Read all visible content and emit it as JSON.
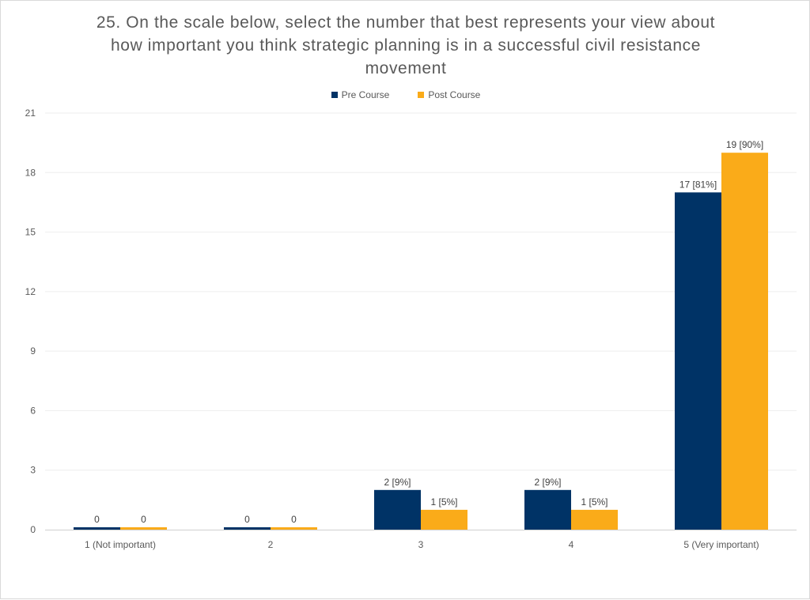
{
  "chart_data": {
    "type": "bar",
    "title": "25. On the scale below, select the number that best represents your view about how important you think strategic planning is in a successful civil resistance movement",
    "xlabel": "",
    "ylabel": "",
    "categories": [
      "1 (Not important)",
      "2",
      "3",
      "4",
      "5 (Very important)"
    ],
    "series": [
      {
        "name": "Pre Course",
        "color": "#003366",
        "values": [
          0,
          0,
          2,
          2,
          17
        ],
        "labels": [
          "0",
          "0",
          "2 [9%]",
          "2 [9%]",
          "17 [81%]"
        ]
      },
      {
        "name": "Post Course",
        "color": "#FAAB19",
        "values": [
          0,
          0,
          1,
          1,
          19
        ],
        "labels": [
          "0",
          "0",
          "1 [5%]",
          "1 [5%]",
          "19 [90%]"
        ]
      }
    ],
    "ylim": [
      0,
      21
    ],
    "yticks": [
      0,
      3,
      6,
      9,
      12,
      15,
      18,
      21
    ],
    "grid": true,
    "legend_position": "top"
  }
}
